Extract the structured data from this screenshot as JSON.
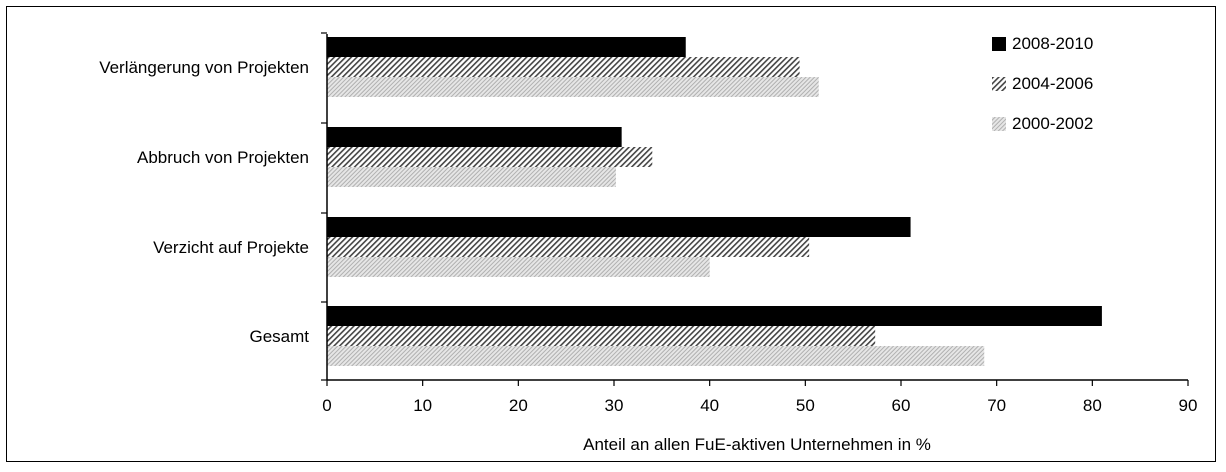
{
  "chart_data": {
    "type": "bar",
    "orientation": "horizontal",
    "categories": [
      "Verlängerung von Projekten",
      "Abbruch von Projekten",
      "Verzicht auf Projekte",
      "Gesamt"
    ],
    "series": [
      {
        "name": "2008-2010",
        "values": [
          37.5,
          30.8,
          61.0,
          81.0
        ],
        "color": "#000000",
        "pattern": "solid"
      },
      {
        "name": "2004-2006",
        "values": [
          49.4,
          34.0,
          50.4,
          57.3
        ],
        "color": "#555555",
        "pattern": "diagonal-hatch"
      },
      {
        "name": "2000-2002",
        "values": [
          51.4,
          30.2,
          40.0,
          68.7
        ],
        "color": "#bbbbbb",
        "pattern": "light-hatch"
      }
    ],
    "xlabel": "Anteil an allen FuE-aktiven Unternehmen in %",
    "xlim": [
      0,
      90
    ],
    "xticks": [
      "0",
      "10",
      "20",
      "30",
      "40",
      "50",
      "60",
      "70",
      "80",
      "90"
    ],
    "grid": false,
    "legend_position": "top-right"
  }
}
